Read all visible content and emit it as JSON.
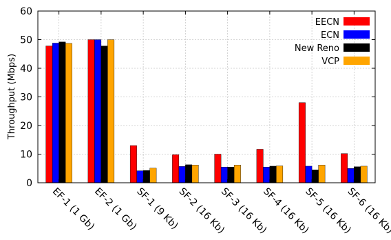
{
  "chart_data": {
    "type": "bar",
    "title": "",
    "xlabel": "",
    "ylabel": "Throughput (Mbps)",
    "ylim": [
      0,
      60
    ],
    "yticks": [
      0,
      10,
      20,
      30,
      40,
      50,
      60
    ],
    "grid": true,
    "legend_position": "top-right",
    "categories": [
      "EF-1 (1 Gb)",
      "EF-2 (1 Gb)",
      "SF-1 (9 Kb)",
      "SF-2 (16 Kb)",
      "SF-3 (16 Kb)",
      "SF-4 (16 Kb)",
      "SF-5 (16 Kb)",
      "SF-6 (16 Kb)"
    ],
    "series": [
      {
        "name": "EECN",
        "color": "#ff0000",
        "values": [
          47.8,
          50.0,
          13.0,
          9.8,
          10.0,
          11.7,
          28.0,
          10.2
        ]
      },
      {
        "name": "ECN",
        "color": "#0000ff",
        "values": [
          48.8,
          50.0,
          4.2,
          5.7,
          5.5,
          5.5,
          5.8,
          5.0
        ]
      },
      {
        "name": "New Reno",
        "color": "#000000",
        "values": [
          49.2,
          47.8,
          4.3,
          6.3,
          5.5,
          5.8,
          4.5,
          5.6
        ]
      },
      {
        "name": "VCP",
        "color": "#ffa500",
        "values": [
          48.7,
          50.0,
          5.1,
          6.2,
          6.2,
          5.9,
          6.2,
          5.8
        ]
      }
    ]
  }
}
